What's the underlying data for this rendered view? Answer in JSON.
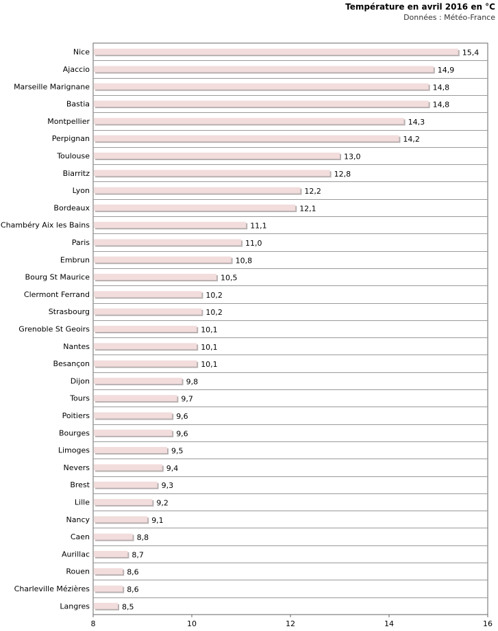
{
  "header": {
    "title": "Température en avril 2016 en °C",
    "subtitle": "Données : Météo-France"
  },
  "colors": {
    "bar_fill": "#f2dcdc",
    "bar_shadow": "#b8b0b0",
    "grid": "#999999",
    "axis": "#666666"
  },
  "chart_data": {
    "type": "bar",
    "orientation": "horizontal",
    "title": "Température en avril 2016 en °C",
    "subtitle": "Données : Météo-France",
    "xlabel": "",
    "ylabel": "",
    "xlim": [
      8,
      16
    ],
    "ticks": [
      8,
      10,
      12,
      14,
      16
    ],
    "tick_labels": [
      "8",
      "10",
      "12",
      "14",
      "16"
    ],
    "grid": "horizontal lines between categories",
    "categories": [
      "Nice",
      "Ajaccio",
      "Marseille Marignane",
      "Bastia",
      "Montpellier",
      "Perpignan",
      "Toulouse",
      "Biarritz",
      "Lyon",
      "Bordeaux",
      "Chambéry Aix les Bains",
      "Paris",
      "Embrun",
      "Bourg St Maurice",
      "Clermont Ferrand",
      "Strasbourg",
      "Grenoble St Geoirs",
      "Nantes",
      "Besançon",
      "Dijon",
      "Tours",
      "Poitiers",
      "Bourges",
      "Limoges",
      "Nevers",
      "Brest",
      "Lille",
      "Nancy",
      "Caen",
      "Aurillac",
      "Rouen",
      "Charleville Mézières",
      "Langres"
    ],
    "values": [
      15.4,
      14.9,
      14.8,
      14.8,
      14.3,
      14.2,
      13.0,
      12.8,
      12.2,
      12.1,
      11.1,
      11.0,
      10.8,
      10.5,
      10.2,
      10.2,
      10.1,
      10.1,
      10.1,
      9.8,
      9.7,
      9.6,
      9.6,
      9.5,
      9.4,
      9.3,
      9.2,
      9.1,
      8.8,
      8.7,
      8.6,
      8.6,
      8.5
    ],
    "value_labels": [
      "15,4",
      "14,9",
      "14,8",
      "14,8",
      "14,3",
      "14,2",
      "13,0",
      "12,8",
      "12,2",
      "12,1",
      "11,1",
      "11,0",
      "10,8",
      "10,5",
      "10,2",
      "10,2",
      "10,1",
      "10,1",
      "10,1",
      "9,8",
      "9,7",
      "9,6",
      "9,6",
      "9,5",
      "9,4",
      "9,3",
      "9,2",
      "9,1",
      "8,8",
      "8,7",
      "8,6",
      "8,6",
      "8,5"
    ]
  }
}
